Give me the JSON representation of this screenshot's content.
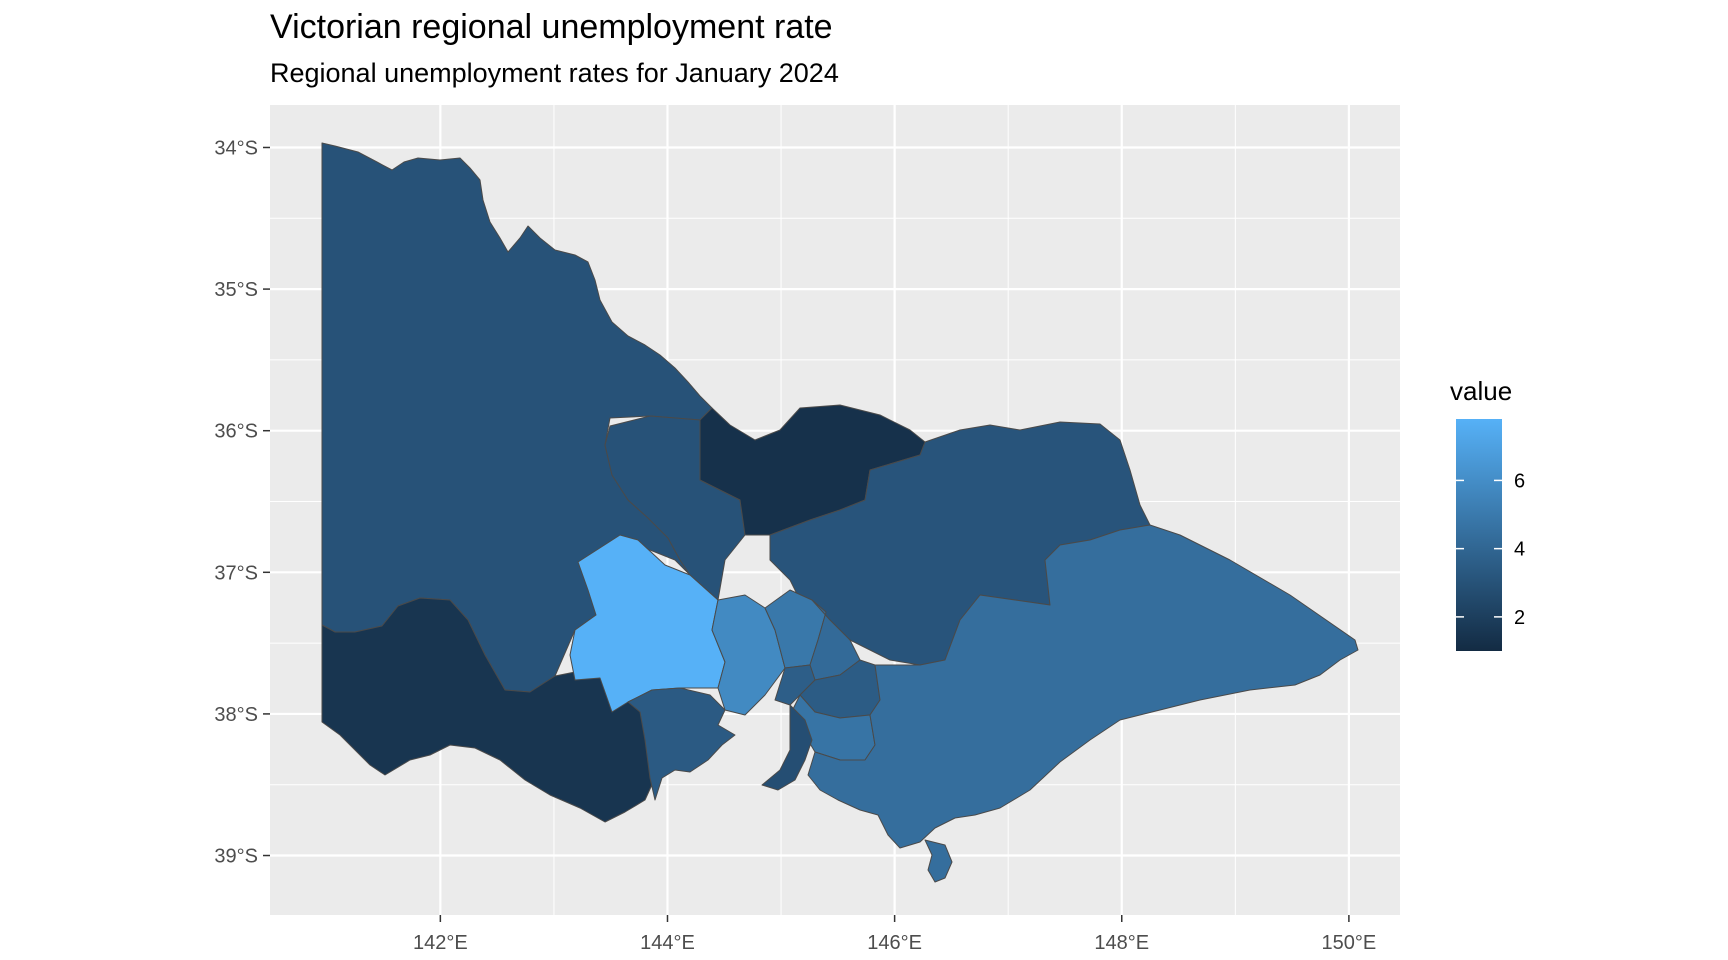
{
  "title": "Victorian regional unemployment rate",
  "subtitle": "Regional unemployment rates for January 2024",
  "legend": {
    "title": "value",
    "min": 1,
    "max": 7.8,
    "ticks": [
      {
        "value": 2,
        "label": "2"
      },
      {
        "value": 4,
        "label": "4"
      },
      {
        "value": 6,
        "label": "6"
      }
    ],
    "low_color": "#132B43",
    "high_color": "#56B1F7"
  },
  "axes": {
    "x_ticks": [
      {
        "value": 142,
        "label": "142°E"
      },
      {
        "value": 144,
        "label": "144°E"
      },
      {
        "value": 146,
        "label": "146°E"
      },
      {
        "value": 148,
        "label": "148°E"
      },
      {
        "value": 150,
        "label": "150°E"
      }
    ],
    "y_ticks": [
      {
        "value": -34,
        "label": "34°S"
      },
      {
        "value": -35,
        "label": "35°S"
      },
      {
        "value": -36,
        "label": "36°S"
      },
      {
        "value": -37,
        "label": "37°S"
      },
      {
        "value": -38,
        "label": "38°S"
      },
      {
        "value": -39,
        "label": "39°S"
      }
    ],
    "xlim": [
      140.5,
      150.45
    ],
    "ylim": [
      -39.42,
      -33.7
    ]
  },
  "colors": {
    "panel_background": "#EBEBEB",
    "grid": "#FFFFFF"
  },
  "regions": [
    {
      "id": "north-west",
      "value": 3.0
    },
    {
      "id": "south-west",
      "value": 1.5
    },
    {
      "id": "bendigo",
      "value": 3.0
    },
    {
      "id": "shepparton",
      "value": 1.3
    },
    {
      "id": "hume",
      "value": 3.1
    },
    {
      "id": "ballarat",
      "value": 7.8
    },
    {
      "id": "geelong",
      "value": 3.4
    },
    {
      "id": "melbourne-west",
      "value": 5.8
    },
    {
      "id": "melbourne-north-west",
      "value": 4.9
    },
    {
      "id": "melbourne-north-east",
      "value": 4.2
    },
    {
      "id": "melbourne-inner",
      "value": 3.6
    },
    {
      "id": "melbourne-outer-east",
      "value": 3.5
    },
    {
      "id": "melbourne-south-east",
      "value": 4.7
    },
    {
      "id": "mornington-peninsula",
      "value": 2.8
    },
    {
      "id": "latrobe-gippsland",
      "value": 4.4
    }
  ]
}
